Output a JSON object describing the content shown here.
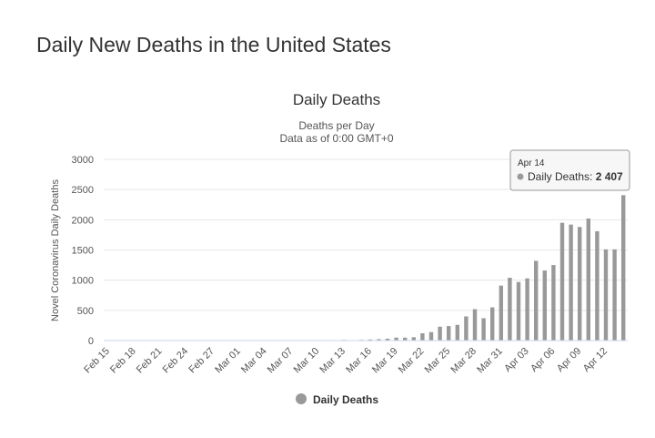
{
  "page": {
    "title": "Daily New Deaths in the United States"
  },
  "chart_data": {
    "type": "bar",
    "title": "Daily Deaths",
    "subtitle_lines": [
      "Deaths per Day",
      "Data as of 0:00 GMT+0"
    ],
    "ylabel": "Novel Coronavirus Daily Deaths",
    "xlabel": "",
    "ylim": [
      0,
      3000
    ],
    "yticks": [
      0,
      500,
      1000,
      1500,
      2000,
      2500,
      3000
    ],
    "xtick_labels": [
      "Feb 15",
      "Feb 18",
      "Feb 21",
      "Feb 24",
      "Feb 27",
      "Mar 01",
      "Mar 04",
      "Mar 07",
      "Mar 10",
      "Mar 13",
      "Mar 16",
      "Mar 19",
      "Mar 22",
      "Mar 25",
      "Mar 28",
      "Mar 31",
      "Apr 03",
      "Apr 06",
      "Apr 09",
      "Apr 12"
    ],
    "categories": [
      "Feb 15",
      "Feb 16",
      "Feb 17",
      "Feb 18",
      "Feb 19",
      "Feb 20",
      "Feb 21",
      "Feb 22",
      "Feb 23",
      "Feb 24",
      "Feb 25",
      "Feb 26",
      "Feb 27",
      "Feb 28",
      "Feb 29",
      "Mar 01",
      "Mar 02",
      "Mar 03",
      "Mar 04",
      "Mar 05",
      "Mar 06",
      "Mar 07",
      "Mar 08",
      "Mar 09",
      "Mar 10",
      "Mar 11",
      "Mar 12",
      "Mar 13",
      "Mar 14",
      "Mar 15",
      "Mar 16",
      "Mar 17",
      "Mar 18",
      "Mar 19",
      "Mar 20",
      "Mar 21",
      "Mar 22",
      "Mar 23",
      "Mar 24",
      "Mar 25",
      "Mar 26",
      "Mar 27",
      "Mar 28",
      "Mar 29",
      "Mar 30",
      "Mar 31",
      "Apr 01",
      "Apr 02",
      "Apr 03",
      "Apr 04",
      "Apr 05",
      "Apr 06",
      "Apr 07",
      "Apr 08",
      "Apr 09",
      "Apr 10",
      "Apr 11",
      "Apr 12",
      "Apr 13",
      "Apr 14"
    ],
    "series": [
      {
        "name": "Daily Deaths",
        "color": "#999999",
        "values": [
          0,
          0,
          0,
          0,
          0,
          0,
          0,
          0,
          0,
          0,
          0,
          0,
          0,
          0,
          1,
          1,
          5,
          1,
          4,
          1,
          2,
          3,
          4,
          4,
          5,
          8,
          7,
          11,
          7,
          12,
          18,
          23,
          31,
          49,
          48,
          55,
          120,
          140,
          230,
          240,
          260,
          400,
          520,
          370,
          550,
          910,
          1040,
          970,
          1030,
          1320,
          1160,
          1250,
          1950,
          1920,
          1880,
          2020,
          1810,
          1510,
          1510,
          2407
        ]
      }
    ],
    "grid": true,
    "legend": {
      "position": "bottom",
      "label": "Daily Deaths"
    },
    "tooltip": {
      "date": "Apr 14",
      "label": "Daily Deaths: ",
      "value": "2 407"
    }
  }
}
